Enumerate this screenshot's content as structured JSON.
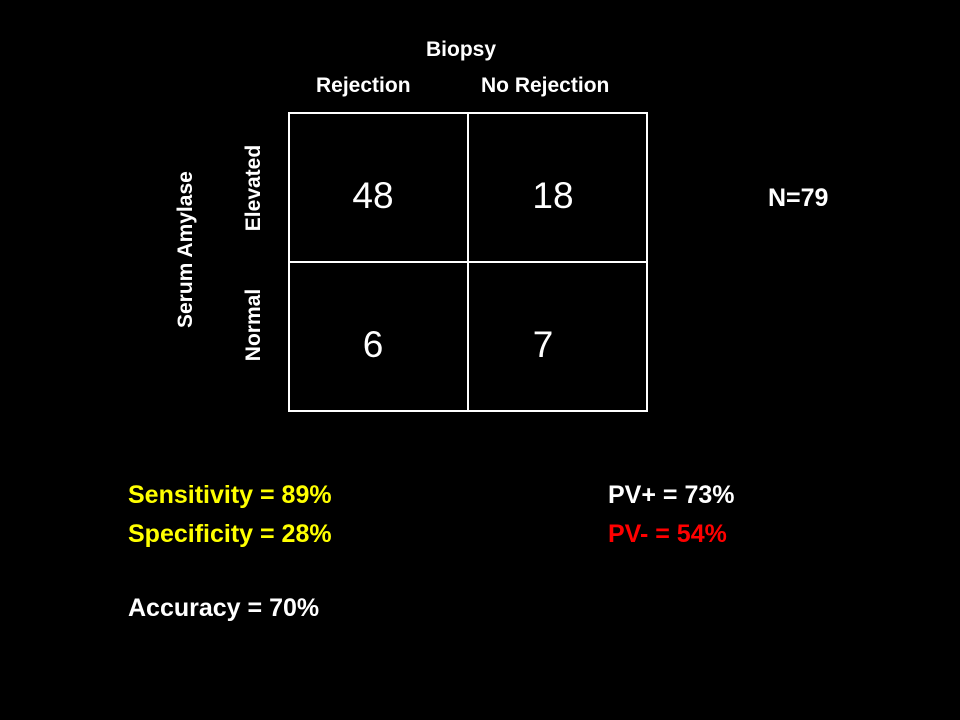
{
  "header": {
    "title": "Biopsy",
    "col_rejection": "Rejection",
    "col_no_rejection": "No Rejection"
  },
  "row_axis": {
    "title": "Serum Amylase",
    "row_elevated": "Elevated",
    "row_normal": "Normal"
  },
  "matrix": {
    "elevated_rejection": "48",
    "elevated_no_rejection": "18",
    "normal_rejection": "6",
    "normal_no_rejection": "7"
  },
  "total": "N=79",
  "metrics": {
    "sensitivity": "Sensitivity = 89%",
    "specificity": "Specificity = 28%",
    "accuracy": "Accuracy = 70%",
    "pv_pos": "PV+ = 73%",
    "pv_neg": "PV- = 54%"
  },
  "colors": {
    "background": "#000000",
    "text": "#ffffff",
    "highlight_yellow": "#ffff00",
    "highlight_red": "#ff0000"
  }
}
